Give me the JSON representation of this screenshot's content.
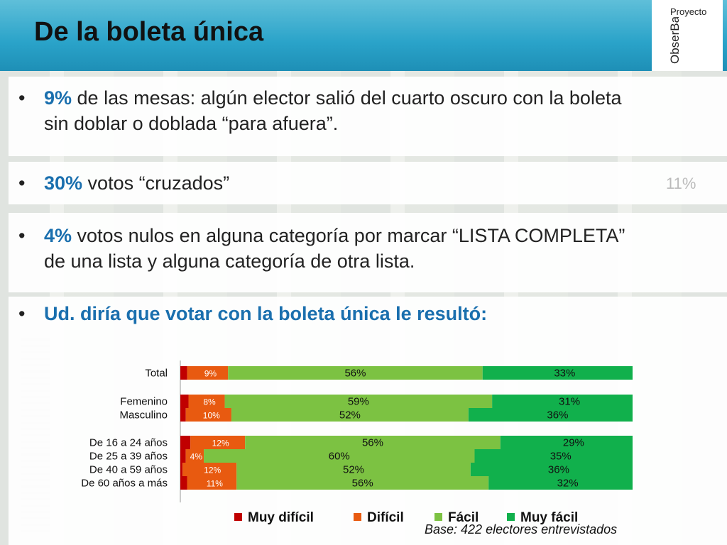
{
  "slide": {
    "title": "De la boleta única",
    "logo_top": "Proyecto",
    "logo_main": "ObserBar",
    "ghost_text": "11%",
    "bullets": [
      {
        "highlight": "9%",
        "text": " de las mesas:  algún elector salió del cuarto oscuro  con la boleta",
        "text2": "sin doblar o doblada “para afuera”."
      },
      {
        "highlight": "30%",
        "text": "  votos “cruzados”"
      },
      {
        "highlight": "4%",
        "text": "  votos nulos  en alguna categoría por marcar “LISTA COMPLETA”",
        "text2": "de una lista y alguna categoría de otra lista."
      },
      {
        "highlight": "Ud. diría que votar con la boleta única le resultó:",
        "text": ""
      }
    ],
    "base_note": "Base: 422 electores entrevistados"
  },
  "colors": {
    "muy_dificil": "#c00000",
    "dificil": "#e85a10",
    "facil": "#7cc242",
    "muy_facil": "#11b04c",
    "accent": "#1a6fae"
  },
  "chart_data": {
    "type": "bar",
    "orientation": "horizontal",
    "stacked": true,
    "categories": [
      "Total",
      "Femenino",
      "Masculino",
      "De 16 a 24 años",
      "De 25 a 39 años",
      "De 40 a 59 años",
      "De 60 años a más"
    ],
    "groups": [
      [
        0
      ],
      [
        1,
        2
      ],
      [
        3,
        4,
        5,
        6
      ]
    ],
    "series": [
      {
        "name": "Muy difícil",
        "values": [
          1.5,
          1.8,
          1.2,
          2.2,
          1.2,
          0.5,
          1.5
        ],
        "labels": [
          "",
          "",
          "",
          "",
          "",
          "",
          ""
        ]
      },
      {
        "name": "Difícil",
        "values": [
          9,
          8,
          10,
          12,
          4,
          12,
          11
        ],
        "labels": [
          "9%",
          "8%",
          "10%",
          "12%",
          "4%",
          "12%",
          "11%"
        ]
      },
      {
        "name": "Fácil",
        "values": [
          56,
          59,
          52,
          56,
          60,
          52,
          56
        ],
        "labels": [
          "56%",
          "59%",
          "52%",
          "56%",
          "60%",
          "52%",
          "56%"
        ]
      },
      {
        "name": "Muy fácil",
        "values": [
          33,
          31,
          36,
          29,
          35,
          36,
          32
        ],
        "labels": [
          "33%",
          "31%",
          "36%",
          "29%",
          "35%",
          "36%",
          "32%"
        ]
      }
    ],
    "legend_position": "bottom",
    "grid": false
  }
}
